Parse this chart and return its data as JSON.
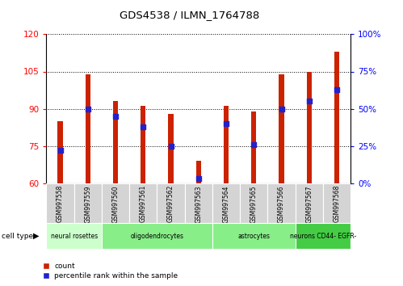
{
  "title": "GDS4538 / ILMN_1764788",
  "samples": [
    "GSM997558",
    "GSM997559",
    "GSM997560",
    "GSM997561",
    "GSM997562",
    "GSM997563",
    "GSM997564",
    "GSM997565",
    "GSM997566",
    "GSM997567",
    "GSM997568"
  ],
  "count_values": [
    85,
    104,
    93,
    91,
    88,
    69,
    91,
    89,
    104,
    105,
    113
  ],
  "percentile_values": [
    22,
    50,
    45,
    38,
    25,
    3,
    40,
    26,
    50,
    55,
    63
  ],
  "ymin": 60,
  "ymax": 120,
  "y_ticks": [
    60,
    75,
    90,
    105,
    120
  ],
  "y2min": 0,
  "y2max": 100,
  "y2_ticks": [
    0,
    25,
    50,
    75,
    100
  ],
  "bar_color": "#cc2200",
  "dot_color": "#2222cc",
  "cell_groups": [
    {
      "label": "neural rosettes",
      "start": 0,
      "end": 1,
      "color": "#ccffcc"
    },
    {
      "label": "oligodendrocytes",
      "start": 2,
      "end": 5,
      "color": "#88ee88"
    },
    {
      "label": "astrocytes",
      "start": 6,
      "end": 8,
      "color": "#88ee88"
    },
    {
      "label": "neurons CD44- EGFR-",
      "start": 9,
      "end": 10,
      "color": "#44cc44"
    }
  ],
  "legend_count_label": "count",
  "legend_pct_label": "percentile rank within the sample",
  "cell_type_label": "cell type"
}
